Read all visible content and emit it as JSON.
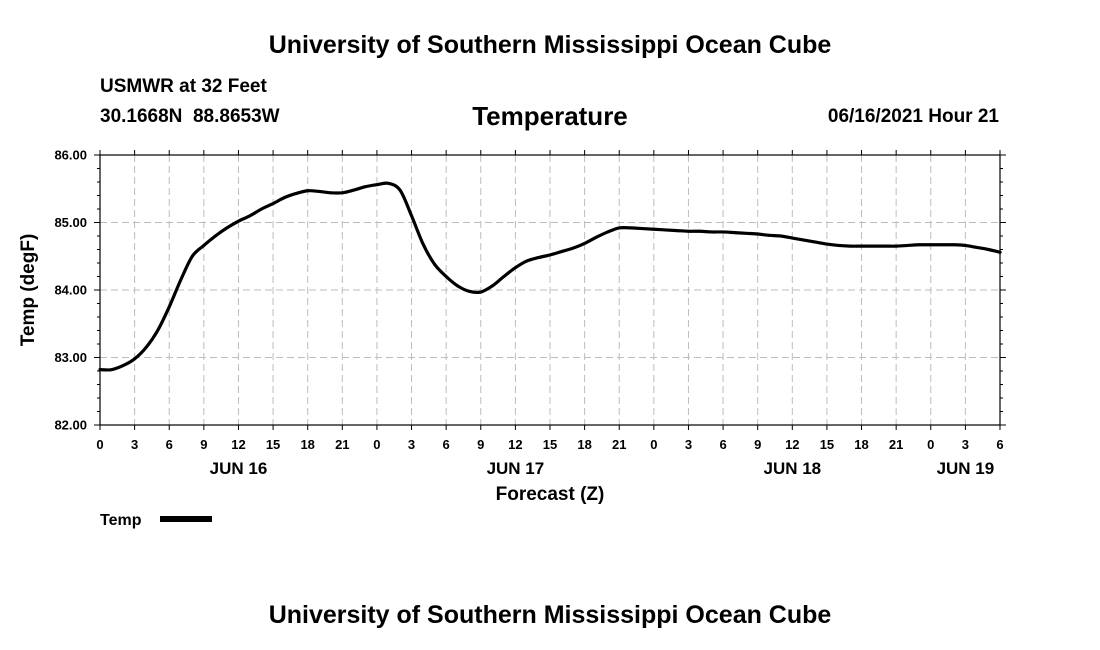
{
  "header": {
    "title": "University of Southern Mississippi Ocean Cube",
    "station_line": "USMWR at 32 Feet",
    "coords_line": "30.1668N  88.8653W",
    "variable": "Temperature",
    "run_time": "06/16/2021 Hour 21"
  },
  "footer": {
    "title": "University of Southern Mississippi Ocean Cube"
  },
  "colors": {
    "line": "#000000",
    "grid": "#bdbdbd",
    "background": "#ffffff"
  },
  "chart_data": {
    "type": "line",
    "title": "Temperature",
    "xlabel": "Forecast (Z)",
    "ylabel": "Temp (degF)",
    "ylim": [
      82.0,
      86.0
    ],
    "xlim": [
      0,
      78
    ],
    "x_unit": "hours since Jun 16 00Z",
    "grid": true,
    "legend_position": "bottom-left",
    "y_ticks": [
      "82.00",
      "83.00",
      "84.00",
      "85.00",
      "86.00"
    ],
    "y_tick_values": [
      82,
      83,
      84,
      85,
      86
    ],
    "x_tick_labels": [
      "0",
      "3",
      "6",
      "9",
      "12",
      "15",
      "18",
      "21",
      "0",
      "3",
      "6",
      "9",
      "12",
      "15",
      "18",
      "21",
      "0",
      "3",
      "6",
      "9",
      "12",
      "15",
      "18",
      "21",
      "0",
      "3",
      "6"
    ],
    "day_labels": [
      {
        "label": "JUN 16",
        "hour": 12
      },
      {
        "label": "JUN 17",
        "hour": 36
      },
      {
        "label": "JUN 18",
        "hour": 60
      },
      {
        "label": "JUN 19",
        "hour": 75
      }
    ],
    "series": [
      {
        "name": "Temp",
        "x": [
          0,
          1,
          2,
          3,
          4,
          5,
          6,
          7,
          8,
          9,
          10,
          11,
          12,
          13,
          14,
          15,
          16,
          17,
          18,
          19,
          20,
          21,
          22,
          23,
          24,
          25,
          26,
          27,
          28,
          29,
          30,
          31,
          32,
          33,
          34,
          35,
          36,
          37,
          38,
          39,
          40,
          41,
          42,
          43,
          44,
          45,
          46,
          47,
          48,
          49,
          50,
          51,
          52,
          53,
          54,
          55,
          56,
          57,
          58,
          59,
          60,
          61,
          62,
          63,
          64,
          65,
          66,
          67,
          68,
          69,
          70,
          71,
          72,
          73,
          74,
          75,
          76,
          77,
          78
        ],
        "values": [
          82.82,
          82.82,
          82.88,
          82.98,
          83.15,
          83.4,
          83.75,
          84.15,
          84.5,
          84.66,
          84.8,
          84.92,
          85.02,
          85.1,
          85.2,
          85.28,
          85.37,
          85.43,
          85.47,
          85.46,
          85.44,
          85.44,
          85.48,
          85.53,
          85.56,
          85.58,
          85.48,
          85.1,
          84.68,
          84.38,
          84.2,
          84.06,
          83.98,
          83.97,
          84.06,
          84.2,
          84.33,
          84.43,
          84.48,
          84.52,
          84.57,
          84.62,
          84.69,
          84.78,
          84.86,
          84.92,
          84.92,
          84.91,
          84.9,
          84.89,
          84.88,
          84.87,
          84.87,
          84.86,
          84.86,
          84.85,
          84.84,
          84.83,
          84.81,
          84.8,
          84.77,
          84.74,
          84.71,
          84.68,
          84.66,
          84.65,
          84.65,
          84.65,
          84.65,
          84.65,
          84.66,
          84.67,
          84.67,
          84.67,
          84.67,
          84.66,
          84.63,
          84.6,
          84.56
        ]
      }
    ]
  },
  "legend": {
    "label": "Temp"
  }
}
